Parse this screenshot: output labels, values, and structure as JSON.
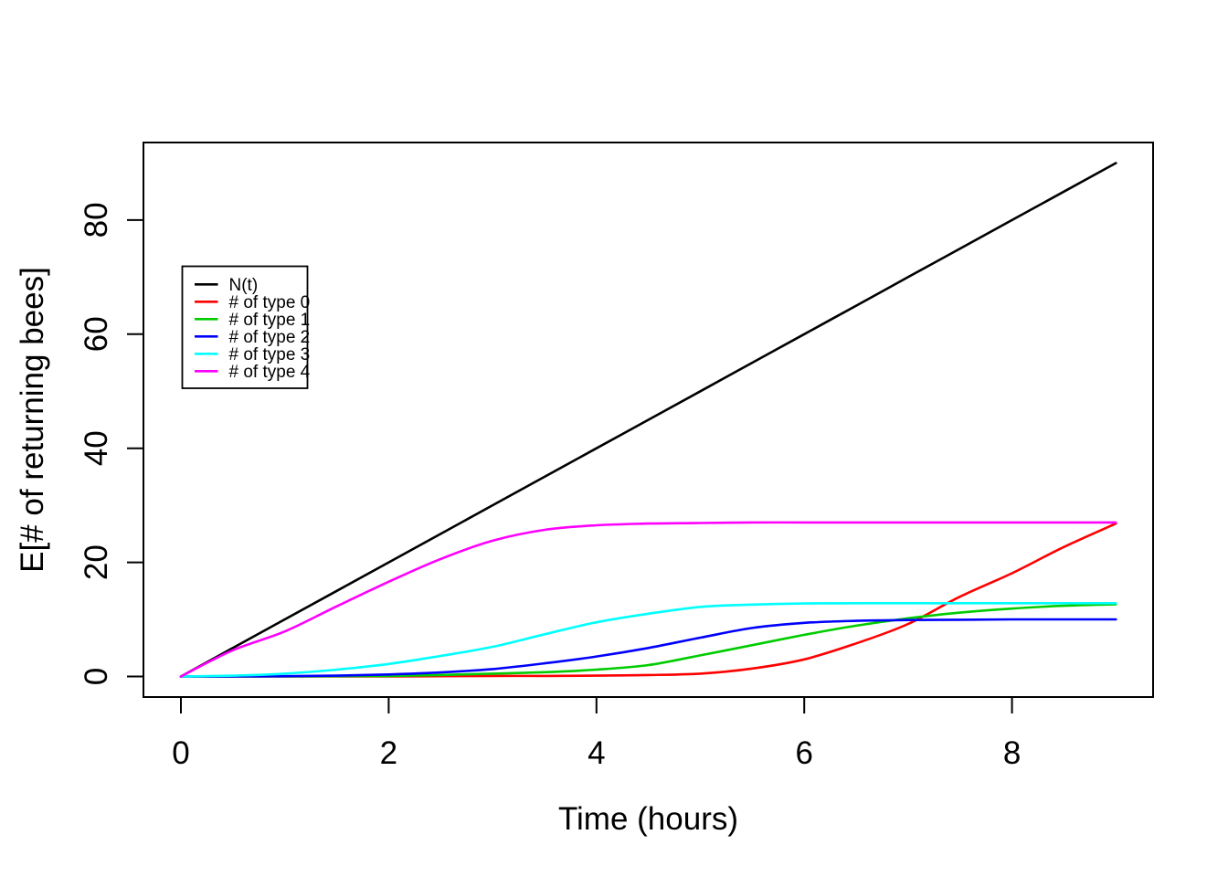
{
  "figure": {
    "background": "#ffffff",
    "frame_color": "#000000"
  },
  "chart_data": {
    "type": "line",
    "title": "",
    "xlabel": "Time (hours)",
    "ylabel": "E[# of returning bees]",
    "xlim": [
      0,
      9
    ],
    "ylim": [
      0,
      90
    ],
    "x_ticks": [
      0,
      2,
      4,
      6,
      8
    ],
    "y_ticks": [
      0,
      20,
      40,
      60,
      80
    ],
    "grid": false,
    "legend_position": "upper-left-inside",
    "x": [
      0,
      0.5,
      1,
      1.5,
      2,
      2.5,
      3,
      3.5,
      4,
      4.5,
      5,
      5.5,
      6,
      6.5,
      7,
      7.5,
      8,
      8.5,
      9
    ],
    "series": [
      {
        "name": "N(t)",
        "color": "#000000",
        "values": [
          0,
          5,
          10,
          15,
          20,
          25,
          30,
          35,
          40,
          45,
          50,
          55,
          60,
          65,
          70,
          75,
          80,
          85,
          90
        ]
      },
      {
        "name": "# of type 0",
        "color": "#FF0000",
        "values": [
          0,
          0,
          0,
          0,
          0,
          0.05,
          0.1,
          0.1,
          0.15,
          0.25,
          0.5,
          1.4,
          3.0,
          5.8,
          9.2,
          14.0,
          18.1,
          22.7,
          26.8
        ]
      },
      {
        "name": "# of type 1",
        "color": "#00CC00",
        "values": [
          0,
          0,
          0,
          0.05,
          0.1,
          0.25,
          0.5,
          0.75,
          1.2,
          2.0,
          3.7,
          5.5,
          7.3,
          8.9,
          10.2,
          11.2,
          11.9,
          12.4,
          12.65
        ]
      },
      {
        "name": "# of type 2",
        "color": "#0000FF",
        "values": [
          0,
          0,
          0.05,
          0.15,
          0.35,
          0.7,
          1.3,
          2.3,
          3.5,
          5.0,
          6.8,
          8.5,
          9.4,
          9.75,
          9.9,
          9.95,
          10,
          10,
          10
        ]
      },
      {
        "name": "# of type 3",
        "color": "#00FFFF",
        "values": [
          0,
          0.15,
          0.5,
          1.2,
          2.2,
          3.6,
          5.2,
          7.4,
          9.5,
          11.0,
          12.2,
          12.6,
          12.8,
          12.85,
          12.85,
          12.85,
          12.85,
          12.85,
          12.85
        ]
      },
      {
        "name": "# of type 4",
        "color": "#FF00FF",
        "values": [
          0,
          4.6,
          7.9,
          12.3,
          16.6,
          20.6,
          23.8,
          25.7,
          26.5,
          26.8,
          26.9,
          27,
          27,
          27,
          27,
          27,
          27,
          27,
          27
        ]
      }
    ]
  }
}
